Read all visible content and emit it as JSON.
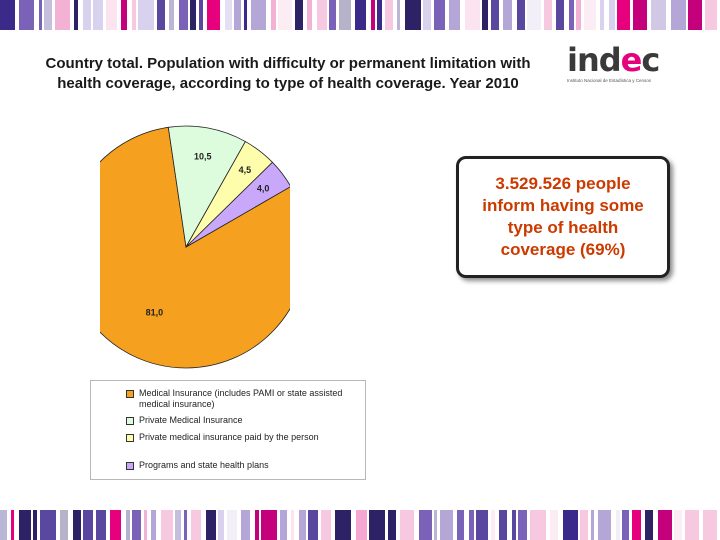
{
  "title": "Country total. Population with difficulty or permanent limitation with health coverage, according to type of health coverage. Year  2010",
  "logo": {
    "text_main": "ind",
    "text_accent": "e",
    "text_end": "c",
    "subtitle": "Instituto Nacional de Estadística y Censos"
  },
  "callout": {
    "text": "3.529.526 people inform having some type of health coverage (69%)"
  },
  "colors": {
    "accent": "#e6007e",
    "callout_text": "#cc3a00"
  },
  "chart_data": {
    "type": "pie",
    "title": "",
    "categories": [
      "Medical Insurance (includes PAMI or state assisted medical insurance)",
      "Private Medical Insurance",
      "Private medical insurance paid by the person",
      "Programs and state health plans"
    ],
    "values": [
      81.0,
      10.5,
      4.5,
      4.0
    ],
    "data_labels": [
      "81,0",
      "10,5",
      "4,5",
      "4,0"
    ],
    "colors": [
      "#f5a01e",
      "#ddfbdd",
      "#fdfdab",
      "#c9a8fb"
    ],
    "legend_position": "bottom"
  }
}
